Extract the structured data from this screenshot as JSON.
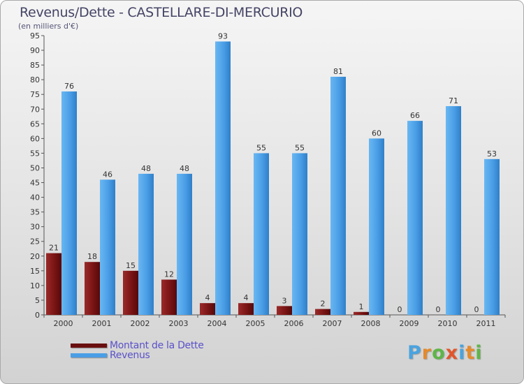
{
  "title": "Revenus/Dette - CASTELLARE-DI-MERCURIO",
  "subtitle": "(en milliers d'€)",
  "logo": {
    "letters": [
      "P",
      "r",
      "o",
      "x",
      "i",
      "t",
      "i"
    ],
    "colors": [
      "#4aa3df",
      "#e58a2b",
      "#5fb548",
      "#e2552c",
      "#4aa3df",
      "#e58a2b",
      "#5fb548"
    ]
  },
  "colors": {
    "dette": "#7a1414",
    "revenus": "#4a9ee6"
  },
  "chart_data": {
    "type": "bar",
    "title": "Revenus/Dette - CASTELLARE-DI-MERCURIO",
    "subtitle": "(en milliers d'€)",
    "categories": [
      "2000",
      "2001",
      "2002",
      "2003",
      "2004",
      "2005",
      "2006",
      "2007",
      "2008",
      "2009",
      "2010",
      "2011"
    ],
    "series": [
      {
        "name": "Montant de la Dette",
        "color": "#7a1414",
        "values": [
          21,
          18,
          15,
          12,
          4,
          4,
          3,
          2,
          1,
          0,
          0,
          0
        ]
      },
      {
        "name": "Revenus",
        "color": "#4a9ee6",
        "values": [
          76,
          46,
          48,
          48,
          93,
          55,
          55,
          81,
          60,
          66,
          71,
          53
        ]
      }
    ],
    "ylim": [
      0,
      95
    ],
    "yticks": [
      0,
      5,
      10,
      15,
      20,
      25,
      30,
      35,
      40,
      45,
      50,
      55,
      60,
      65,
      70,
      75,
      80,
      85,
      90,
      95
    ],
    "grid": false,
    "legend": "bottom-left",
    "xlabel": "",
    "ylabel": ""
  }
}
